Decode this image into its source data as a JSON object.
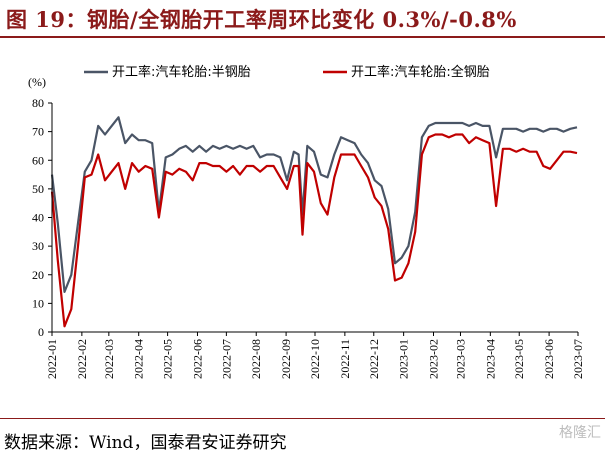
{
  "figure": {
    "title": "图 19：钢胎/全钢胎开工率周环比变化 0.3%/-0.8%",
    "source": "数据来源：Wind，国泰君安证券研究",
    "watermark": "格隆汇"
  },
  "chart_data": {
    "type": "line",
    "unit_label": "(%)",
    "ylim": [
      0,
      80
    ],
    "yticks": [
      0,
      10,
      20,
      30,
      40,
      50,
      60,
      70,
      80
    ],
    "xlim": [
      "2022-01",
      "2023-07"
    ],
    "xticks": [
      "2022-01",
      "2022-02",
      "2022-03",
      "2022-04",
      "2022-05",
      "2022-06",
      "2022-07",
      "2022-08",
      "2022-09",
      "2022-10",
      "2022-11",
      "2022-12",
      "2023-01",
      "2023-02",
      "2023-03",
      "2023-04",
      "2023-05",
      "2023-06",
      "2023-07"
    ],
    "grid": false,
    "legend": "top",
    "colors": {
      "semi_steel": "#4a5566",
      "all_steel": "#c00000"
    },
    "series": [
      {
        "name": "开工率:汽车轮胎:半钢胎",
        "key": "semi_steel",
        "points": [
          [
            "2022-01-01",
            55
          ],
          [
            "2022-01-07",
            38
          ],
          [
            "2022-01-14",
            14
          ],
          [
            "2022-01-21",
            20
          ],
          [
            "2022-01-28",
            38
          ],
          [
            "2022-02-04",
            56
          ],
          [
            "2022-02-11",
            60
          ],
          [
            "2022-02-18",
            72
          ],
          [
            "2022-02-25",
            69
          ],
          [
            "2022-03-04",
            72
          ],
          [
            "2022-03-11",
            75
          ],
          [
            "2022-03-18",
            66
          ],
          [
            "2022-03-25",
            69
          ],
          [
            "2022-04-01",
            67
          ],
          [
            "2022-04-08",
            67
          ],
          [
            "2022-04-15",
            66
          ],
          [
            "2022-04-22",
            42
          ],
          [
            "2022-04-29",
            61
          ],
          [
            "2022-05-06",
            62
          ],
          [
            "2022-05-13",
            64
          ],
          [
            "2022-05-20",
            65
          ],
          [
            "2022-05-27",
            63
          ],
          [
            "2022-06-03",
            65
          ],
          [
            "2022-06-10",
            63
          ],
          [
            "2022-06-17",
            65
          ],
          [
            "2022-06-24",
            64
          ],
          [
            "2022-07-01",
            65
          ],
          [
            "2022-07-08",
            64
          ],
          [
            "2022-07-15",
            65
          ],
          [
            "2022-07-22",
            64
          ],
          [
            "2022-07-29",
            65
          ],
          [
            "2022-08-05",
            61
          ],
          [
            "2022-08-12",
            62
          ],
          [
            "2022-08-19",
            62
          ],
          [
            "2022-08-26",
            61
          ],
          [
            "2022-09-02",
            53
          ],
          [
            "2022-09-09",
            63
          ],
          [
            "2022-09-14",
            62
          ],
          [
            "2022-09-18",
            41
          ],
          [
            "2022-09-23",
            65
          ],
          [
            "2022-09-30",
            63
          ],
          [
            "2022-10-07",
            55
          ],
          [
            "2022-10-14",
            54
          ],
          [
            "2022-10-21",
            62
          ],
          [
            "2022-10-28",
            68
          ],
          [
            "2022-11-04",
            67
          ],
          [
            "2022-11-11",
            66
          ],
          [
            "2022-11-18",
            62
          ],
          [
            "2022-11-25",
            59
          ],
          [
            "2022-12-02",
            53
          ],
          [
            "2022-12-09",
            51
          ],
          [
            "2022-12-16",
            43
          ],
          [
            "2022-12-23",
            24
          ],
          [
            "2022-12-30",
            26
          ],
          [
            "2023-01-06",
            30
          ],
          [
            "2023-01-13",
            42
          ],
          [
            "2023-01-20",
            68
          ],
          [
            "2023-01-27",
            72
          ],
          [
            "2023-02-03",
            73
          ],
          [
            "2023-02-10",
            73
          ],
          [
            "2023-02-17",
            73
          ],
          [
            "2023-02-24",
            73
          ],
          [
            "2023-03-03",
            73
          ],
          [
            "2023-03-10",
            72
          ],
          [
            "2023-03-17",
            73
          ],
          [
            "2023-03-24",
            72
          ],
          [
            "2023-03-31",
            72
          ],
          [
            "2023-04-07",
            61
          ],
          [
            "2023-04-14",
            71
          ],
          [
            "2023-04-21",
            71
          ],
          [
            "2023-04-28",
            71
          ],
          [
            "2023-05-05",
            70
          ],
          [
            "2023-05-12",
            71
          ],
          [
            "2023-05-19",
            71
          ],
          [
            "2023-05-26",
            70
          ],
          [
            "2023-06-02",
            71
          ],
          [
            "2023-06-09",
            71
          ],
          [
            "2023-06-16",
            70
          ],
          [
            "2023-06-23",
            71
          ],
          [
            "2023-06-30",
            71.5
          ]
        ]
      },
      {
        "name": "开工率:汽车轮胎:全钢胎",
        "key": "all_steel",
        "points": [
          [
            "2022-01-01",
            49
          ],
          [
            "2022-01-07",
            25
          ],
          [
            "2022-01-14",
            2
          ],
          [
            "2022-01-21",
            8
          ],
          [
            "2022-01-28",
            30
          ],
          [
            "2022-02-04",
            54
          ],
          [
            "2022-02-11",
            55
          ],
          [
            "2022-02-18",
            62
          ],
          [
            "2022-02-25",
            53
          ],
          [
            "2022-03-04",
            56
          ],
          [
            "2022-03-11",
            59
          ],
          [
            "2022-03-18",
            50
          ],
          [
            "2022-03-25",
            59
          ],
          [
            "2022-04-01",
            56
          ],
          [
            "2022-04-08",
            58
          ],
          [
            "2022-04-15",
            57
          ],
          [
            "2022-04-22",
            40
          ],
          [
            "2022-04-29",
            56
          ],
          [
            "2022-05-06",
            55
          ],
          [
            "2022-05-13",
            57
          ],
          [
            "2022-05-20",
            56
          ],
          [
            "2022-05-27",
            53
          ],
          [
            "2022-06-03",
            59
          ],
          [
            "2022-06-10",
            59
          ],
          [
            "2022-06-17",
            58
          ],
          [
            "2022-06-24",
            58
          ],
          [
            "2022-07-01",
            56
          ],
          [
            "2022-07-08",
            58
          ],
          [
            "2022-07-15",
            55
          ],
          [
            "2022-07-22",
            58
          ],
          [
            "2022-07-29",
            58
          ],
          [
            "2022-08-05",
            56
          ],
          [
            "2022-08-12",
            58
          ],
          [
            "2022-08-19",
            58
          ],
          [
            "2022-08-26",
            54
          ],
          [
            "2022-09-02",
            50
          ],
          [
            "2022-09-09",
            58
          ],
          [
            "2022-09-14",
            58
          ],
          [
            "2022-09-18",
            34
          ],
          [
            "2022-09-23",
            59
          ],
          [
            "2022-09-30",
            56
          ],
          [
            "2022-10-07",
            45
          ],
          [
            "2022-10-14",
            41
          ],
          [
            "2022-10-21",
            54
          ],
          [
            "2022-10-28",
            62
          ],
          [
            "2022-11-04",
            62
          ],
          [
            "2022-11-11",
            62
          ],
          [
            "2022-11-18",
            58
          ],
          [
            "2022-11-25",
            54
          ],
          [
            "2022-12-02",
            47
          ],
          [
            "2022-12-09",
            44
          ],
          [
            "2022-12-16",
            36
          ],
          [
            "2022-12-23",
            18
          ],
          [
            "2022-12-30",
            19
          ],
          [
            "2023-01-06",
            24
          ],
          [
            "2023-01-13",
            35
          ],
          [
            "2023-01-20",
            62
          ],
          [
            "2023-01-27",
            68
          ],
          [
            "2023-02-03",
            69
          ],
          [
            "2023-02-10",
            69
          ],
          [
            "2023-02-17",
            68
          ],
          [
            "2023-02-24",
            69
          ],
          [
            "2023-03-03",
            69
          ],
          [
            "2023-03-10",
            66
          ],
          [
            "2023-03-17",
            68
          ],
          [
            "2023-03-24",
            67
          ],
          [
            "2023-03-31",
            66
          ],
          [
            "2023-04-07",
            44
          ],
          [
            "2023-04-14",
            64
          ],
          [
            "2023-04-21",
            64
          ],
          [
            "2023-04-28",
            63
          ],
          [
            "2023-05-05",
            64
          ],
          [
            "2023-05-12",
            63
          ],
          [
            "2023-05-19",
            63
          ],
          [
            "2023-05-26",
            58
          ],
          [
            "2023-06-02",
            57
          ],
          [
            "2023-06-09",
            60
          ],
          [
            "2023-06-16",
            63
          ],
          [
            "2023-06-23",
            63
          ],
          [
            "2023-06-30",
            62.5
          ]
        ]
      }
    ]
  }
}
